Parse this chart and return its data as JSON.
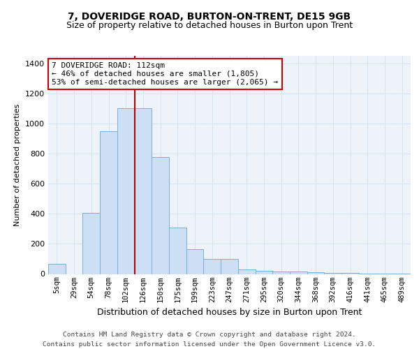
{
  "title1": "7, DOVERIDGE ROAD, BURTON-ON-TRENT, DE15 9GB",
  "title2": "Size of property relative to detached houses in Burton upon Trent",
  "xlabel": "Distribution of detached houses by size in Burton upon Trent",
  "ylabel": "Number of detached properties",
  "footer1": "Contains HM Land Registry data © Crown copyright and database right 2024.",
  "footer2": "Contains public sector information licensed under the Open Government Licence v3.0.",
  "categories": [
    "5sqm",
    "29sqm",
    "54sqm",
    "78sqm",
    "102sqm",
    "126sqm",
    "150sqm",
    "175sqm",
    "199sqm",
    "223sqm",
    "247sqm",
    "271sqm",
    "295sqm",
    "320sqm",
    "344sqm",
    "368sqm",
    "392sqm",
    "416sqm",
    "441sqm",
    "465sqm",
    "489sqm"
  ],
  "values": [
    65,
    0,
    405,
    950,
    1100,
    1100,
    775,
    310,
    165,
    100,
    100,
    30,
    20,
    15,
    15,
    10,
    5,
    5,
    3,
    3,
    3
  ],
  "bar_color": "#ccdff5",
  "bar_edge_color": "#7aafd4",
  "vline_pos": 4.5,
  "vline_color": "#bb0000",
  "annotation_line1": "7 DOVERIDGE ROAD: 112sqm",
  "annotation_line2": "← 46% of detached houses are smaller (1,805)",
  "annotation_line3": "53% of semi-detached houses are larger (2,065) →",
  "ann_box_color": "#cc0000",
  "ylim": [
    0,
    1450
  ],
  "yticks": [
    0,
    200,
    400,
    600,
    800,
    1000,
    1200,
    1400
  ],
  "bg_color": "#eef3fa",
  "grid_color": "#d8e4f0",
  "title1_fontsize": 10,
  "title2_fontsize": 9,
  "ylabel_fontsize": 8,
  "xlabel_fontsize": 9,
  "tick_fontsize": 7.5,
  "ann_fontsize": 8
}
